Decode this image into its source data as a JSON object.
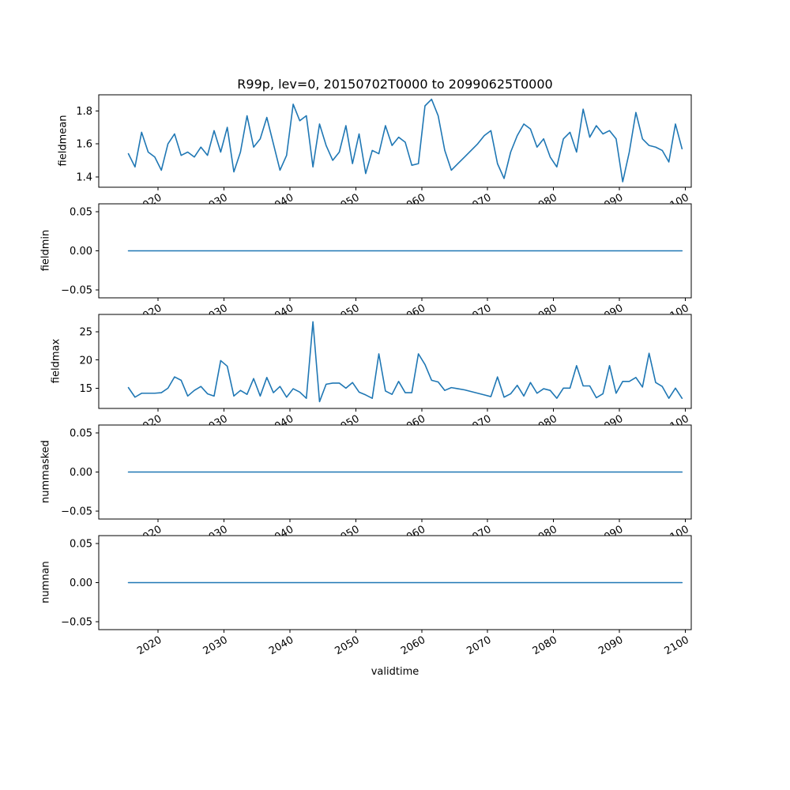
{
  "figure": {
    "background": "#ffffff"
  },
  "chart_data": {
    "type": "line",
    "title": "R99p, lev=0, 20150702T0000 to 20990625T0000",
    "xlabel": "validtime",
    "line_color": "#1f77b4",
    "x_start": 2015.5,
    "x_step": 1,
    "n_points": 85,
    "xlim": [
      2011.0,
      2100.9
    ],
    "xticks": [
      2020,
      2030,
      2040,
      2050,
      2060,
      2070,
      2080,
      2090,
      2100
    ],
    "xtick_labels": [
      "2020",
      "2030",
      "2040",
      "2050",
      "2060",
      "2070",
      "2080",
      "2090",
      "2100"
    ],
    "legend": "none",
    "grid": false,
    "subplots": [
      {
        "ylabel": "fieldmean",
        "ylim": [
          1.337,
          1.897
        ],
        "yticks": [
          1.4,
          1.6,
          1.8
        ],
        "ytick_labels": [
          "1.4",
          "1.6",
          "1.8"
        ],
        "values": [
          1.54,
          1.46,
          1.67,
          1.55,
          1.52,
          1.44,
          1.6,
          1.66,
          1.53,
          1.55,
          1.52,
          1.58,
          1.53,
          1.68,
          1.55,
          1.7,
          1.43,
          1.55,
          1.77,
          1.58,
          1.63,
          1.76,
          1.6,
          1.44,
          1.53,
          1.84,
          1.74,
          1.77,
          1.46,
          1.72,
          1.59,
          1.5,
          1.55,
          1.71,
          1.48,
          1.66,
          1.42,
          1.56,
          1.54,
          1.71,
          1.59,
          1.64,
          1.61,
          1.47,
          1.48,
          1.83,
          1.87,
          1.77,
          1.56,
          1.44,
          1.48,
          1.52,
          1.56,
          1.6,
          1.65,
          1.68,
          1.48,
          1.39,
          1.55,
          1.65,
          1.72,
          1.69,
          1.58,
          1.63,
          1.52,
          1.46,
          1.63,
          1.67,
          1.55,
          1.81,
          1.64,
          1.71,
          1.66,
          1.68,
          1.63,
          1.37,
          1.55,
          1.79,
          1.63,
          1.59,
          1.58,
          1.56,
          1.49,
          1.72,
          1.57
        ]
      },
      {
        "ylabel": "fieldmin",
        "ylim": [
          -0.06,
          0.06
        ],
        "yticks": [
          -0.05,
          0.0,
          0.05
        ],
        "ytick_labels": [
          "−0.05",
          "0.00",
          "0.05"
        ],
        "values_constant": 0.0
      },
      {
        "ylabel": "fieldmax",
        "ylim": [
          11.4,
          28.1
        ],
        "yticks": [
          15,
          20,
          25
        ],
        "ytick_labels": [
          "15",
          "20",
          "25"
        ],
        "values": [
          15.1,
          13.4,
          14.1,
          14.1,
          14.1,
          14.2,
          15.0,
          17.0,
          16.4,
          13.6,
          14.6,
          15.3,
          14.0,
          13.6,
          19.9,
          18.9,
          13.6,
          14.6,
          13.9,
          16.7,
          13.6,
          16.9,
          14.2,
          15.3,
          13.4,
          14.9,
          14.3,
          13.2,
          26.8,
          12.6,
          15.7,
          15.9,
          15.9,
          15.0,
          16.0,
          14.3,
          13.8,
          13.2,
          21.1,
          14.5,
          13.9,
          16.2,
          14.2,
          14.2,
          21.1,
          19.2,
          16.4,
          16.1,
          14.6,
          15.1,
          14.9,
          14.7,
          14.4,
          14.1,
          13.8,
          13.5,
          17.0,
          13.4,
          14.0,
          15.5,
          13.6,
          16.0,
          14.1,
          14.9,
          14.6,
          13.2,
          15.0,
          15.0,
          19.0,
          15.4,
          15.4,
          13.3,
          14.0,
          19.0,
          14.1,
          16.2,
          16.2,
          16.9,
          15.2,
          21.2,
          16.0,
          15.3,
          13.2,
          15.0,
          13.2
        ]
      },
      {
        "ylabel": "nummasked",
        "ylim": [
          -0.06,
          0.06
        ],
        "yticks": [
          -0.05,
          0.0,
          0.05
        ],
        "ytick_labels": [
          "−0.05",
          "0.00",
          "0.05"
        ],
        "values_constant": 0.0
      },
      {
        "ylabel": "numnan",
        "ylim": [
          -0.06,
          0.06
        ],
        "yticks": [
          -0.05,
          0.0,
          0.05
        ],
        "ytick_labels": [
          "−0.05",
          "0.00",
          "0.05"
        ],
        "values_constant": 0.0
      }
    ]
  }
}
